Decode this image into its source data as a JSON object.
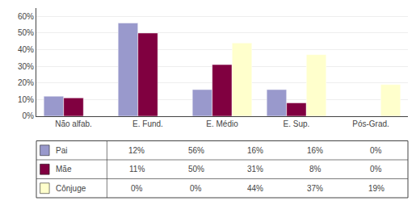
{
  "chart_data": {
    "type": "bar",
    "categories": [
      "Não alfab.",
      "E. Fund.",
      "E. Médio",
      "E. Sup.",
      "Pós-Grad."
    ],
    "series": [
      {
        "name": "Pai",
        "color": "#9999cc",
        "values": [
          12,
          56,
          16,
          16,
          0
        ],
        "value_labels": [
          "12%",
          "56%",
          "16%",
          "16%",
          "0%"
        ]
      },
      {
        "name": "Mãe",
        "color": "#800040",
        "values": [
          11,
          50,
          31,
          8,
          0
        ],
        "value_labels": [
          "11%",
          "50%",
          "31%",
          "8%",
          "0%"
        ]
      },
      {
        "name": "Cônjuge",
        "color": "#ffffcc",
        "values": [
          0,
          0,
          44,
          37,
          19
        ],
        "value_labels": [
          "0%",
          "0%",
          "44%",
          "37%",
          "19%"
        ]
      }
    ],
    "ylim": [
      0,
      65
    ],
    "yticks": [
      {
        "value": 0,
        "label": "0%"
      },
      {
        "value": 10,
        "label": "10%"
      },
      {
        "value": 20,
        "label": "20%"
      },
      {
        "value": 30,
        "label": "30%"
      },
      {
        "value": 40,
        "label": "40%"
      },
      {
        "value": 50,
        "label": "50%"
      },
      {
        "value": 60,
        "label": "60%"
      }
    ],
    "grid": true
  }
}
